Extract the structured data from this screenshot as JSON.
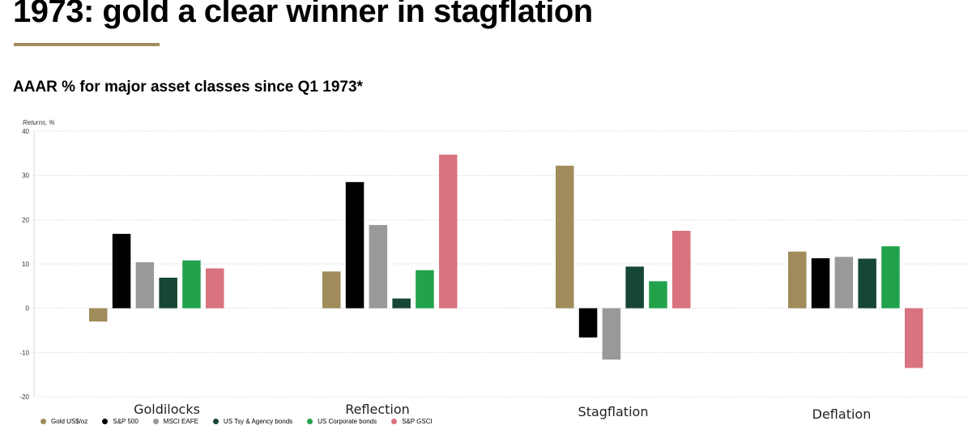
{
  "header": {
    "title": "1973: gold a clear winner in stagflation",
    "subtitle": "AAAR % for major asset classes since Q1 1973*"
  },
  "colors": {
    "accent_rule": "#a08c5b",
    "gridline": "#cccccc"
  },
  "chart_data": {
    "type": "bar",
    "title": "",
    "ylabel": "Returns, %",
    "xlabel": "",
    "ylim": [
      -20,
      40
    ],
    "yticks": [
      40,
      30,
      20,
      10,
      0,
      -10,
      -20
    ],
    "grid": true,
    "grid_style": "dotted",
    "legend_position": "bottom-left",
    "categories": [
      "Goldilocks",
      "Reflection",
      "Stagflation",
      "Deflation"
    ],
    "series": [
      {
        "name": "Gold US$/oz",
        "color": "#a08c5b",
        "values": [
          -3,
          8.3,
          32.2,
          12.8
        ]
      },
      {
        "name": "S&P 500",
        "color": "#000000",
        "values": [
          16.8,
          28.5,
          -6.6,
          11.3
        ]
      },
      {
        "name": "MSCI EAFE",
        "color": "#999999",
        "values": [
          10.4,
          18.8,
          -11.6,
          11.6
        ]
      },
      {
        "name": "US Tsy & Agency bonds",
        "color": "#154734",
        "values": [
          6.9,
          2.2,
          9.4,
          11.2
        ]
      },
      {
        "name": "US Corporate bonds",
        "color": "#22a34b",
        "values": [
          10.8,
          8.6,
          6.1,
          14.0
        ]
      },
      {
        "name": "S&P GSCI",
        "color": "#d9737f",
        "values": [
          9.0,
          34.7,
          17.5,
          -13.5
        ]
      }
    ]
  }
}
